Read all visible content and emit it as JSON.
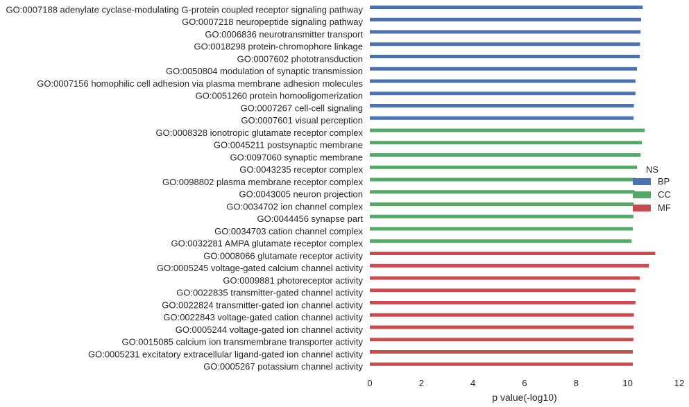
{
  "chart_data": {
    "type": "bar",
    "orientation": "horizontal",
    "xlabel": "p value(-log10)",
    "ylabel": "",
    "xlim": [
      0,
      12
    ],
    "xticks": [
      0,
      2,
      4,
      6,
      8,
      10,
      12
    ],
    "grid": false,
    "legend": {
      "title": "NS",
      "placement": "right",
      "entries": [
        {
          "name": "BP",
          "color": "#4c72b0"
        },
        {
          "name": "CC",
          "color": "#55a868"
        },
        {
          "name": "MF",
          "color": "#c44e52"
        }
      ]
    },
    "categories": [
      "GO:0007188 adenylate cyclase-modulating G-protein coupled receptor signaling pathway",
      "GO:0007218 neuropeptide signaling pathway",
      "GO:0006836 neurotransmitter transport",
      "GO:0018298 protein-chromophore linkage",
      "GO:0007602 phototransduction",
      "GO:0050804 modulation of synaptic transmission",
      "GO:0007156 homophilic cell adhesion via plasma membrane adhesion molecules",
      "GO:0051260 protein homooligomerization",
      "GO:0007267 cell-cell signaling",
      "GO:0007601 visual perception",
      "GO:0008328 ionotropic glutamate receptor complex",
      "GO:0045211 postsynaptic membrane",
      "GO:0097060 synaptic membrane",
      "GO:0043235 receptor complex",
      "GO:0098802 plasma membrane receptor complex",
      "GO:0043005 neuron projection",
      "GO:0034702 ion channel complex",
      "GO:0044456 synapse part",
      "GO:0034703 cation channel complex",
      "GO:0032281 AMPA glutamate receptor complex",
      "GO:0008066 glutamate receptor activity",
      "GO:0005245 voltage-gated calcium channel activity",
      "GO:0009881 photoreceptor activity",
      "GO:0022835 transmitter-gated channel activity",
      "GO:0022824 transmitter-gated ion channel activity",
      "GO:0022843 voltage-gated cation channel activity",
      "GO:0005244 voltage-gated ion channel activity",
      "GO:0015085 calcium ion transmembrane transporter activity",
      "GO:0005231 excitatory extracellular ligand-gated ion channel activity",
      "GO:0005267 potassium channel activity"
    ],
    "values": [
      10.58,
      10.52,
      10.5,
      10.48,
      10.47,
      10.36,
      10.3,
      10.3,
      10.24,
      10.23,
      10.66,
      10.55,
      10.5,
      10.36,
      10.3,
      10.27,
      10.23,
      10.22,
      10.2,
      10.15,
      11.07,
      10.82,
      10.47,
      10.3,
      10.3,
      10.24,
      10.23,
      10.22,
      10.2,
      10.2
    ],
    "groups": [
      "BP",
      "BP",
      "BP",
      "BP",
      "BP",
      "BP",
      "BP",
      "BP",
      "BP",
      "BP",
      "CC",
      "CC",
      "CC",
      "CC",
      "CC",
      "CC",
      "CC",
      "CC",
      "CC",
      "CC",
      "MF",
      "MF",
      "MF",
      "MF",
      "MF",
      "MF",
      "MF",
      "MF",
      "MF",
      "MF"
    ]
  }
}
